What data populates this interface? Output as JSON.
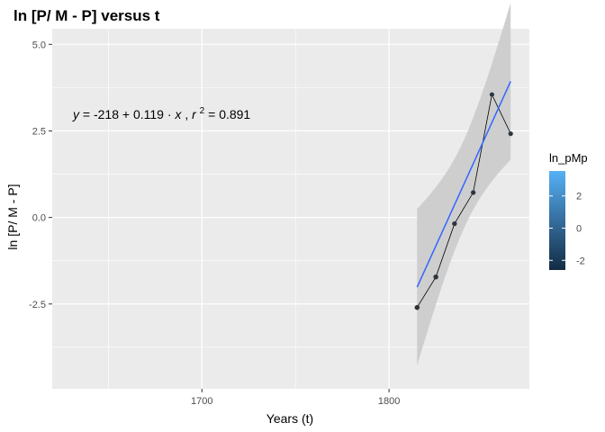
{
  "chart_data": {
    "type": "scatter",
    "title": "ln [P/ M - P] versus t",
    "xlabel": "Years (t)",
    "ylabel": "ln [P/ M - P]",
    "xlim": [
      1620,
      1875
    ],
    "ylim": [
      -4.95,
      5.45
    ],
    "x_ticks": [
      1700,
      1800
    ],
    "y_ticks": [
      -2.5,
      0.0,
      2.5,
      5.0
    ],
    "y_tick_labels": [
      "-2.5",
      "0.0",
      "2.5",
      "5.0"
    ],
    "grid": true,
    "points": {
      "x": [
        1815,
        1825,
        1835,
        1845,
        1855,
        1865
      ],
      "y": [
        -2.6,
        -1.72,
        -0.18,
        0.72,
        3.55,
        2.42
      ]
    },
    "fit": {
      "intercept": -218,
      "slope": 0.119,
      "r2": 0.891,
      "x_range": [
        1815,
        1865
      ]
    },
    "annotation": {
      "y_var": "y",
      "intercept": "-218",
      "slope": "0.119",
      "x_var": "x",
      "r2_label": "r",
      "r2_sup": "2",
      "r2_value": "0.891"
    },
    "colors": {
      "panel": "#ebebeb",
      "grid": "#ffffff",
      "fit_line": "#3366ff",
      "confidence_band": "#cccccc",
      "path": "#000000",
      "gradient_low": "#132b43",
      "gradient_high": "#56b1f7"
    },
    "legend": {
      "title": "ln_pMp",
      "position": "right",
      "ticks": [
        2,
        0,
        -2
      ],
      "tick_labels": [
        "2",
        "0",
        "-2"
      ],
      "range": [
        -2.6,
        3.55
      ]
    }
  }
}
